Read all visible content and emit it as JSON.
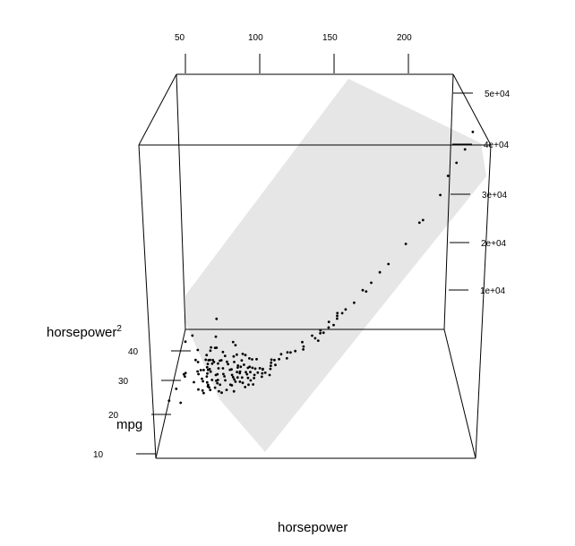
{
  "chart_data": {
    "type": "scatter",
    "projection": "3d",
    "grid": false,
    "x_axis": {
      "label": "horsepower",
      "ticks": [
        "50",
        "100",
        "150",
        "200"
      ],
      "range": [
        46,
        230
      ]
    },
    "y_axis": {
      "label": "mpg",
      "ticks": [
        "10",
        "20",
        "30",
        "40"
      ],
      "range": [
        9,
        47
      ]
    },
    "z_axis": {
      "label_base": "horsepower",
      "label_exponent": "2",
      "ticks": [
        "1e+04",
        "2e+04",
        "3e+04",
        "4e+04",
        "5e+04"
      ],
      "range": [
        2116,
        52900
      ]
    },
    "fitted_plane": {
      "shown": true,
      "color": "#e6e6e6"
    },
    "points_color": "#000000",
    "points": [
      [
        46,
        26.0
      ],
      [
        48,
        43.1
      ],
      [
        49,
        29.0
      ],
      [
        52,
        44.3
      ],
      [
        52,
        32.8
      ],
      [
        53,
        32.0
      ],
      [
        53,
        33.0
      ],
      [
        54,
        24.0
      ],
      [
        58,
        39.0
      ],
      [
        58,
        36.0
      ],
      [
        60,
        35.0
      ],
      [
        60,
        29.0
      ],
      [
        61,
        32.0
      ],
      [
        62,
        31.0
      ],
      [
        63,
        32.0
      ],
      [
        64,
        26.0
      ],
      [
        65,
        29.0
      ],
      [
        65,
        36.1
      ],
      [
        65,
        34.7
      ],
      [
        65,
        31.6
      ],
      [
        66,
        28.0
      ],
      [
        67,
        33.0
      ],
      [
        67,
        38.0
      ],
      [
        67,
        34.1
      ],
      [
        67,
        32.0
      ],
      [
        67,
        25.0
      ],
      [
        67,
        37.0
      ],
      [
        67,
        46.6
      ],
      [
        68,
        29.0
      ],
      [
        68,
        31.0
      ],
      [
        68,
        34.0
      ],
      [
        68,
        24.0
      ],
      [
        68,
        29.9
      ],
      [
        69,
        27.0
      ],
      [
        69,
        31.0
      ],
      [
        69,
        40.8
      ],
      [
        70,
        32.4
      ],
      [
        70,
        30.0
      ],
      [
        70,
        37.2
      ],
      [
        70,
        25.5
      ],
      [
        70,
        26.0
      ],
      [
        70,
        33.5
      ],
      [
        71,
        25.0
      ],
      [
        71,
        32.7
      ],
      [
        71,
        37.0
      ],
      [
        72,
        27.0
      ],
      [
        72,
        24.0
      ],
      [
        74,
        28.0
      ],
      [
        74,
        31.5
      ],
      [
        75,
        26.0
      ],
      [
        75,
        29.8
      ],
      [
        75,
        32.1
      ],
      [
        75,
        23.9
      ],
      [
        75,
        28.0
      ],
      [
        76,
        25.0
      ],
      [
        76,
        32.0
      ],
      [
        76,
        34.5
      ],
      [
        76,
        26.0
      ],
      [
        78,
        24.0
      ],
      [
        78,
        29.0
      ],
      [
        78,
        32.8
      ],
      [
        78,
        22.0
      ],
      [
        79,
        27.0
      ],
      [
        80,
        26.0
      ],
      [
        80,
        21.0
      ],
      [
        80,
        30.5
      ],
      [
        81,
        29.5
      ],
      [
        81,
        24.5
      ],
      [
        82,
        36.0
      ],
      [
        83,
        21.0
      ],
      [
        83,
        27.2
      ],
      [
        84,
        31.0
      ],
      [
        84,
        34.5
      ],
      [
        84,
        27.0
      ],
      [
        85,
        22.0
      ],
      [
        85,
        25.0
      ],
      [
        85,
        29.0
      ],
      [
        86,
        24.0
      ],
      [
        86,
        31.0
      ],
      [
        86,
        21.5
      ],
      [
        87,
        23.0
      ],
      [
        88,
        25.0
      ],
      [
        88,
        27.0
      ],
      [
        88,
        19.0
      ],
      [
        88,
        22.0
      ],
      [
        88,
        26.4
      ],
      [
        89,
        23.0
      ],
      [
        90,
        28.0
      ],
      [
        90,
        24.0
      ],
      [
        90,
        26.0
      ],
      [
        90,
        24.5
      ],
      [
        90,
        30.0
      ],
      [
        91,
        21.0
      ],
      [
        92,
        22.0
      ],
      [
        92,
        26.0
      ],
      [
        92,
        29.0
      ],
      [
        93,
        20.0
      ],
      [
        94,
        23.0
      ],
      [
        95,
        24.0
      ],
      [
        95,
        22.0
      ],
      [
        95,
        18.0
      ],
      [
        95,
        27.0
      ],
      [
        96,
        24.0
      ],
      [
        96,
        20.5
      ],
      [
        97,
        22.0
      ],
      [
        97,
        26.0
      ],
      [
        97,
        18.0
      ],
      [
        98,
        23.0
      ],
      [
        98,
        19.0
      ],
      [
        100,
        22.0
      ],
      [
        100,
        19.0
      ],
      [
        100,
        20.0
      ],
      [
        100,
        25.0
      ],
      [
        100,
        17.0
      ],
      [
        102,
        20.0
      ],
      [
        103,
        21.0
      ],
      [
        105,
        20.0
      ],
      [
        105,
        17.5
      ],
      [
        105,
        18.6
      ],
      [
        105,
        19.8
      ],
      [
        107,
        18.0
      ],
      [
        110,
        20.0
      ],
      [
        110,
        18.0
      ],
      [
        110,
        21.0
      ],
      [
        110,
        16.0
      ],
      [
        110,
        19.0
      ],
      [
        112,
        20.0
      ],
      [
        113,
        18.0
      ],
      [
        115,
        19.0
      ],
      [
        116,
        20.2
      ],
      [
        120,
        17.0
      ],
      [
        120,
        19.0
      ],
      [
        122,
        18.0
      ],
      [
        125,
        17.0
      ],
      [
        129,
        18.0
      ],
      [
        130,
        15.0
      ],
      [
        130,
        16.0
      ],
      [
        135,
        17.0
      ],
      [
        137,
        15.0
      ],
      [
        139,
        13.0
      ],
      [
        140,
        15.0
      ],
      [
        140,
        16.0
      ],
      [
        142,
        14.0
      ],
      [
        145,
        14.0
      ],
      [
        145,
        16.0
      ],
      [
        148,
        13.0
      ],
      [
        150,
        15.0
      ],
      [
        150,
        14.0
      ],
      [
        150,
        16.0
      ],
      [
        153,
        14.0
      ],
      [
        155,
        14.0
      ],
      [
        160,
        13.0
      ],
      [
        165,
        14.0
      ],
      [
        167,
        12.0
      ],
      [
        170,
        13.0
      ],
      [
        175,
        13.0
      ],
      [
        180,
        12.0
      ],
      [
        190,
        11.0
      ],
      [
        198,
        12.0
      ],
      [
        200,
        11.0
      ],
      [
        210,
        11.0
      ],
      [
        215,
        14.0
      ],
      [
        220,
        14.0
      ],
      [
        225,
        14.0
      ],
      [
        230,
        16.0
      ]
    ]
  }
}
